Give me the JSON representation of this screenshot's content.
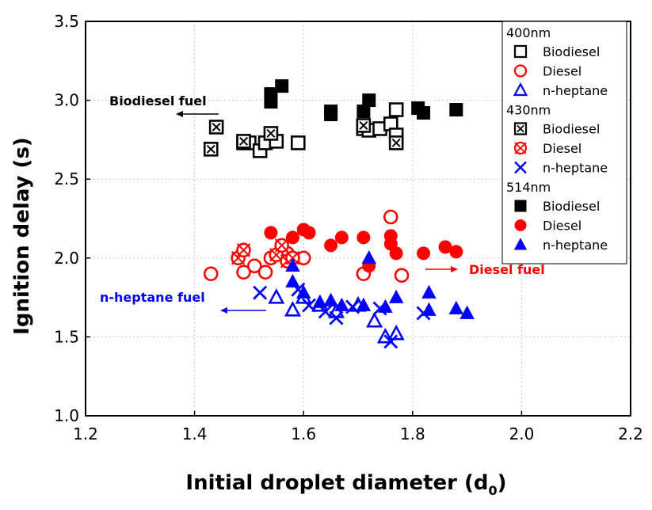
{
  "chart_data": {
    "type": "scatter",
    "title": "",
    "xlabel": "Initial droplet diameter (d",
    "xlabel_sub": "0",
    "xlabel_close": ")",
    "ylabel": "Ignition delay (s)",
    "xlim": [
      1.2,
      2.2
    ],
    "ylim": [
      1.0,
      3.5
    ],
    "x_ticks": [
      "1.2",
      "1.4",
      "1.6",
      "1.8",
      "2.0",
      "2.2"
    ],
    "y_ticks": [
      "1.0",
      "1.5",
      "2.0",
      "2.5",
      "3.0",
      "3.5"
    ],
    "grid": true,
    "legend_position": "top-right",
    "legend_groups": [
      {
        "title": "400nm",
        "entries": [
          "Biodiesel",
          "Diesel",
          "n-heptane"
        ]
      },
      {
        "title": "430nm",
        "entries": [
          "Biodiesel",
          "Diesel",
          "n-heptane"
        ]
      },
      {
        "title": "514nm",
        "entries": [
          "Biodiesel",
          "Diesel",
          "n-heptane"
        ]
      }
    ],
    "colors": {
      "biodiesel": "#000000",
      "diesel": "#ff0000",
      "heptane": "#0000ff"
    },
    "annotations": [
      {
        "text": "Biodiesel fuel",
        "color": "#000000"
      },
      {
        "text": "Diesel fuel",
        "color": "#ff0000"
      },
      {
        "text": "n-heptane fuel",
        "color": "#0000ff"
      }
    ],
    "series": [
      {
        "name": "Biodiesel",
        "group": "400nm",
        "marker": "square-open",
        "color": "#000000",
        "points": [
          [
            1.49,
            2.73
          ],
          [
            1.5,
            2.73
          ],
          [
            1.52,
            2.68
          ],
          [
            1.53,
            2.73
          ],
          [
            1.55,
            2.74
          ],
          [
            1.59,
            2.73
          ],
          [
            1.71,
            2.82
          ],
          [
            1.72,
            2.81
          ],
          [
            1.74,
            2.82
          ],
          [
            1.76,
            2.85
          ],
          [
            1.77,
            2.78
          ],
          [
            1.77,
            2.94
          ]
        ]
      },
      {
        "name": "Diesel",
        "group": "400nm",
        "marker": "circle-open",
        "color": "#ff0000",
        "points": [
          [
            1.43,
            1.9
          ],
          [
            1.49,
            1.91
          ],
          [
            1.51,
            1.95
          ],
          [
            1.53,
            1.91
          ],
          [
            1.54,
            2.0
          ],
          [
            1.57,
            2.03
          ],
          [
            1.6,
            2.0
          ],
          [
            1.71,
            1.9
          ],
          [
            1.76,
            2.26
          ],
          [
            1.78,
            1.89
          ]
        ]
      },
      {
        "name": "n-heptane",
        "group": "400nm",
        "marker": "triangle-open",
        "color": "#0000ff",
        "points": [
          [
            1.55,
            1.75
          ],
          [
            1.58,
            1.67
          ],
          [
            1.6,
            1.75
          ],
          [
            1.63,
            1.7
          ],
          [
            1.66,
            1.66
          ],
          [
            1.7,
            1.7
          ],
          [
            1.73,
            1.6
          ],
          [
            1.75,
            1.5
          ],
          [
            1.77,
            1.52
          ]
        ]
      },
      {
        "name": "Biodiesel",
        "group": "430nm",
        "marker": "square-x",
        "color": "#000000",
        "points": [
          [
            1.43,
            2.69
          ],
          [
            1.44,
            2.83
          ],
          [
            1.49,
            2.74
          ],
          [
            1.54,
            2.79
          ],
          [
            1.71,
            2.84
          ],
          [
            1.77,
            2.73
          ]
        ]
      },
      {
        "name": "Diesel",
        "group": "430nm",
        "marker": "circle-x",
        "color": "#ff0000",
        "points": [
          [
            1.48,
            2.0
          ],
          [
            1.49,
            2.05
          ],
          [
            1.55,
            2.02
          ],
          [
            1.56,
            2.08
          ],
          [
            1.57,
            1.98
          ],
          [
            1.58,
            2.0
          ]
        ]
      },
      {
        "name": "n-heptane",
        "group": "430nm",
        "marker": "x",
        "color": "#0000ff",
        "points": [
          [
            1.52,
            1.78
          ],
          [
            1.59,
            1.8
          ],
          [
            1.61,
            1.7
          ],
          [
            1.64,
            1.66
          ],
          [
            1.66,
            1.62
          ],
          [
            1.69,
            1.69
          ],
          [
            1.74,
            1.68
          ],
          [
            1.76,
            1.47
          ],
          [
            1.82,
            1.65
          ]
        ]
      },
      {
        "name": "Biodiesel",
        "group": "514nm",
        "marker": "square-filled",
        "color": "#000000",
        "points": [
          [
            1.54,
            3.04
          ],
          [
            1.54,
            2.99
          ],
          [
            1.56,
            3.09
          ],
          [
            1.65,
            2.93
          ],
          [
            1.65,
            2.91
          ],
          [
            1.71,
            2.93
          ],
          [
            1.72,
            3.0
          ],
          [
            1.81,
            2.95
          ],
          [
            1.82,
            2.92
          ],
          [
            1.88,
            2.94
          ]
        ]
      },
      {
        "name": "Diesel",
        "group": "514nm",
        "marker": "circle-filled",
        "color": "#ff0000",
        "points": [
          [
            1.54,
            2.16
          ],
          [
            1.58,
            2.13
          ],
          [
            1.6,
            2.18
          ],
          [
            1.61,
            2.16
          ],
          [
            1.65,
            2.08
          ],
          [
            1.67,
            2.13
          ],
          [
            1.71,
            2.13
          ],
          [
            1.72,
            1.95
          ],
          [
            1.76,
            2.14
          ],
          [
            1.76,
            2.09
          ],
          [
            1.77,
            2.03
          ],
          [
            1.82,
            2.03
          ],
          [
            1.86,
            2.07
          ],
          [
            1.88,
            2.04
          ]
        ]
      },
      {
        "name": "n-heptane",
        "group": "514nm",
        "marker": "triangle-filled",
        "color": "#0000ff",
        "points": [
          [
            1.58,
            1.95
          ],
          [
            1.58,
            1.85
          ],
          [
            1.6,
            1.78
          ],
          [
            1.63,
            1.72
          ],
          [
            1.65,
            1.73
          ],
          [
            1.67,
            1.7
          ],
          [
            1.71,
            1.7
          ],
          [
            1.72,
            2.0
          ],
          [
            1.75,
            1.69
          ],
          [
            1.77,
            1.75
          ],
          [
            1.83,
            1.78
          ],
          [
            1.83,
            1.67
          ],
          [
            1.88,
            1.68
          ],
          [
            1.9,
            1.65
          ]
        ]
      }
    ]
  }
}
